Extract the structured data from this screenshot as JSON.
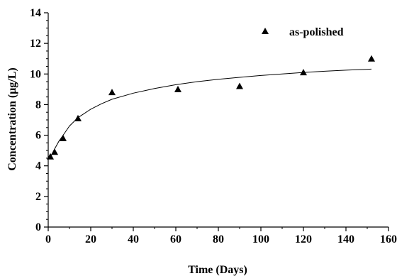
{
  "chart_data": {
    "type": "scatter",
    "title": "",
    "xlabel": "Time (Days)",
    "ylabel": "Concentration (μg/L)",
    "xlim": [
      0,
      160
    ],
    "ylim": [
      0,
      14
    ],
    "x_ticks": [
      0,
      20,
      40,
      60,
      80,
      100,
      120,
      140,
      160
    ],
    "y_ticks": [
      0,
      2,
      4,
      6,
      8,
      10,
      12,
      14
    ],
    "grid": false,
    "legend_position": "top-right",
    "series": [
      {
        "name": "as-polished",
        "marker": "triangle",
        "color": "#000000",
        "x": [
          1,
          3,
          7,
          14,
          30,
          61,
          90,
          120,
          152
        ],
        "y": [
          4.6,
          4.9,
          5.8,
          7.1,
          8.8,
          9.0,
          9.2,
          10.1,
          11.0
        ]
      }
    ],
    "fit_curve": {
      "color": "#000000",
      "x": [
        1,
        3,
        5,
        7,
        10,
        14,
        20,
        25,
        30,
        40,
        50,
        60,
        70,
        80,
        90,
        100,
        110,
        120,
        130,
        140,
        152
      ],
      "y": [
        4.55,
        5.1,
        5.6,
        6.0,
        6.6,
        7.15,
        7.7,
        8.05,
        8.35,
        8.75,
        9.05,
        9.3,
        9.5,
        9.65,
        9.78,
        9.9,
        10.0,
        10.1,
        10.18,
        10.25,
        10.32
      ]
    }
  }
}
